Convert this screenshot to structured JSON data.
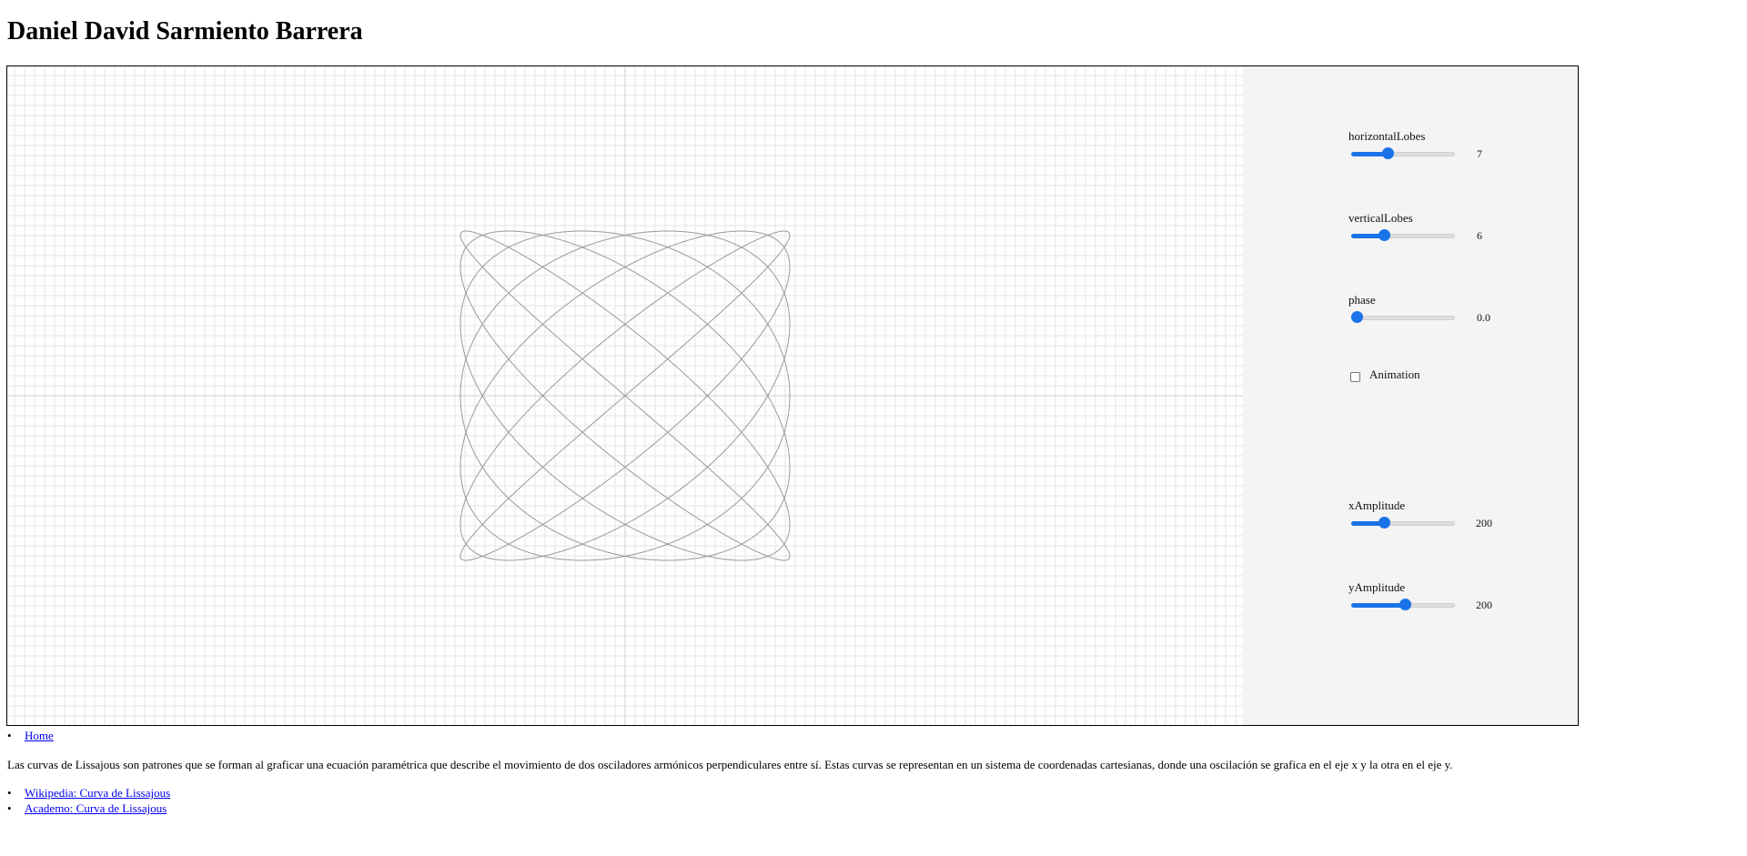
{
  "header": {
    "title": "Daniel David Sarmiento Barrera"
  },
  "controls": {
    "horizontalLobes": {
      "label": "horizontalLobes",
      "value": "7",
      "fraction": 0.33
    },
    "verticalLobes": {
      "label": "verticalLobes",
      "value": "6",
      "fraction": 0.29
    },
    "phase": {
      "label": "phase",
      "value": "0.0",
      "fraction": 0.0
    },
    "animation": {
      "label": "Animation",
      "checked": false
    },
    "xAmplitude": {
      "label": "xAmplitude",
      "value": "200",
      "fraction": 0.29
    },
    "yAmplitude": {
      "label": "yAmplitude",
      "value": "200",
      "fraction": 0.52
    }
  },
  "curve": {
    "a": 7,
    "b": 6,
    "phase": 0.0,
    "xAmplitude": 200,
    "yAmplitude": 200,
    "color": "#9a9a9a"
  },
  "colors": {
    "accent": "#1a73e8",
    "panel": "#f4f4f4",
    "grid": "#e6e6e6",
    "axis": "#cfcfcf"
  },
  "nav": {
    "home": "Home"
  },
  "description": "Las curvas de Lissajous son patrones que se forman al graficar una ecuación paramétrica que describe el movimiento de dos osciladores armónicos perpendiculares entre sí. Estas curvas se representan en un sistema de coordenadas cartesianas, donde una oscilación se grafica en el eje x y la otra en el eje y.",
  "references": [
    {
      "label": "Wikipedia: Curva de Lissajous"
    },
    {
      "label": "Academo: Curva de Lissajous"
    }
  ],
  "bullet": "•"
}
